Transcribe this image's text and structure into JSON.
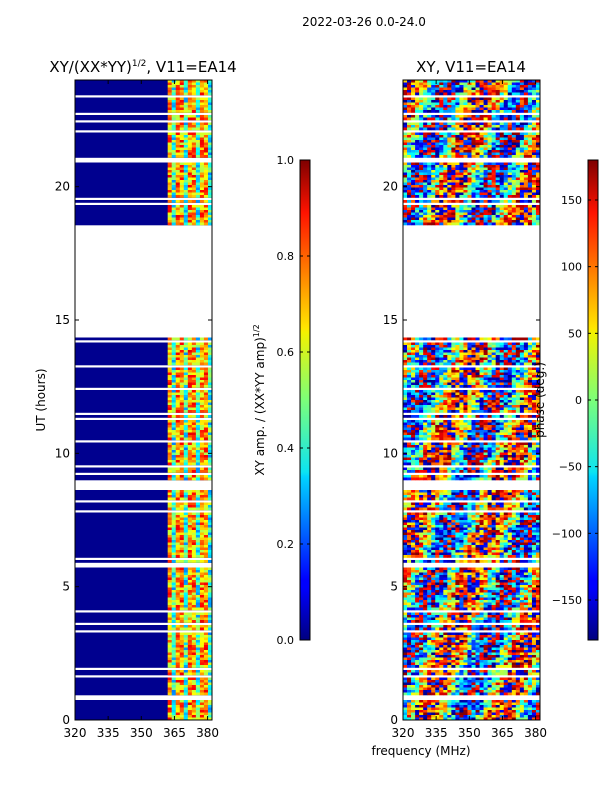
{
  "figure": {
    "suptitle": "2022-03-26 0.0-24.0",
    "shared_xlabel": "frequency (MHz)"
  },
  "chart_data": [
    {
      "type": "heatmap",
      "title": "XY/(XX*YY)",
      "title_superscript": "1/2",
      "title_suffix": ", V11=EA14",
      "xlabel": "frequency (MHz)",
      "ylabel": "UT (hours)",
      "xlim": [
        320,
        382
      ],
      "ylim": [
        0,
        24
      ],
      "xticks": [
        320,
        335,
        350,
        365,
        380
      ],
      "yticks": [
        0,
        5,
        10,
        15,
        20
      ],
      "data_gap_hours": [
        14.4,
        18.5
      ],
      "colorbar": {
        "label": "XY amp. / (XX*YY amp)",
        "label_superscript": "1/2",
        "range": [
          0.0,
          1.0
        ],
        "ticks": [
          "0.0",
          "0.2",
          "0.4",
          "0.6",
          "0.8",
          "1.0"
        ],
        "tick_values": [
          0.0,
          0.2,
          0.4,
          0.6,
          0.8,
          1.0
        ],
        "colormap": "jet"
      }
    },
    {
      "type": "heatmap",
      "title": "XY, V11=EA14",
      "xlabel": "frequency (MHz)",
      "ylabel": "",
      "xlim": [
        320,
        382
      ],
      "ylim": [
        0,
        24
      ],
      "xticks": [
        320,
        335,
        350,
        365,
        380
      ],
      "yticks": [
        0,
        5,
        10,
        15,
        20
      ],
      "data_gap_hours": [
        14.4,
        18.5
      ],
      "colorbar": {
        "label": "phase (deg.)",
        "range": [
          -180,
          180
        ],
        "ticks": [
          "−150",
          "−100",
          "−50",
          "0",
          "50",
          "100",
          "150"
        ],
        "tick_values": [
          -150,
          -100,
          -50,
          0,
          50,
          100,
          150
        ],
        "colormap": "jet"
      }
    }
  ]
}
